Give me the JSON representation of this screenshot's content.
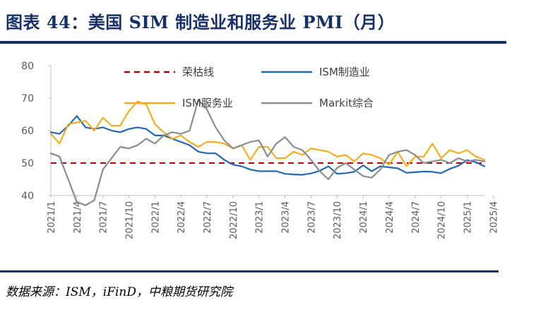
{
  "header": {
    "title": "图表 44：美国 SIM 制造业和服务业 PMI（月）"
  },
  "footer": {
    "source": "数据来源：ISM，iFinD，中粮期货研究院"
  },
  "colors": {
    "brand": "#16306a",
    "manufacturing": "#2368b4",
    "services": "#f5ad1e",
    "markit": "#8c8c8c",
    "boom_line": "#c00000"
  },
  "chart_data": {
    "type": "line",
    "title": "",
    "xlabel": "",
    "ylabel": "",
    "ylim": [
      40,
      80
    ],
    "yticks": [
      40,
      50,
      60,
      70,
      80
    ],
    "x_start": "2021/1",
    "x_end": "2025/4",
    "xticks": [
      "2021/1",
      "2021/4",
      "2021/7",
      "2021/10",
      "2022/1",
      "2022/4",
      "2022/7",
      "2022/10",
      "2023/1",
      "2023/4",
      "2023/7",
      "2023/10",
      "2024/1",
      "2024/4",
      "2024/7",
      "2024/10",
      "2025/1",
      "2025/4"
    ],
    "legend": [
      "荣枯线",
      "ISM制造业",
      "ISM服务业",
      "Markit综合"
    ],
    "series": [
      {
        "name": "荣枯线",
        "color": "#c00000",
        "dashed": true,
        "values": [
          50,
          50,
          50,
          50,
          50,
          50,
          50,
          50,
          50,
          50,
          50,
          50,
          50,
          50,
          50,
          50,
          50,
          50,
          50,
          50,
          50,
          50,
          50,
          50,
          50,
          50,
          50,
          50,
          50,
          50,
          50,
          50,
          50,
          50,
          50,
          50,
          50,
          50,
          50,
          50,
          50,
          50,
          50,
          50,
          50,
          50,
          50,
          50,
          50,
          50,
          50
        ]
      },
      {
        "name": "ISM制造业",
        "color": "#2368b4",
        "values": [
          59.5,
          59.0,
          61.5,
          64.5,
          61.0,
          60.5,
          61.0,
          60.0,
          59.5,
          60.5,
          61.0,
          60.5,
          58.5,
          58.5,
          57.5,
          56.5,
          55.5,
          53.5,
          53.0,
          53.0,
          51.0,
          49.5,
          49.0,
          48.0,
          47.5,
          47.5,
          47.5,
          46.7,
          46.5,
          46.4,
          46.8,
          47.6,
          49.0,
          46.7,
          46.9,
          47.3,
          49.3,
          47.5,
          49.0,
          48.7,
          48.4,
          47.0,
          47.2,
          47.4,
          47.3,
          46.9,
          48.2,
          49.2,
          50.9,
          50.3,
          49.0
        ]
      },
      {
        "name": "ISM服务业",
        "color": "#f5ad1e",
        "values": [
          59.0,
          56.0,
          62.0,
          62.5,
          63.0,
          60.0,
          64.0,
          61.5,
          61.5,
          66.0,
          69.0,
          68.0,
          62.0,
          59.5,
          57.5,
          58.5,
          56.5,
          55.0,
          56.5,
          56.5,
          56.0,
          54.5,
          55.5,
          51.0,
          55.0,
          55.0,
          51.5,
          51.5,
          53.5,
          52.5,
          54.5,
          54.0,
          53.5,
          52.0,
          52.5,
          50.5,
          53.0,
          52.5,
          51.5,
          49.5,
          53.5,
          49.0,
          52.0,
          52.0,
          56.0,
          51.5,
          54.0,
          53.0,
          54.0,
          52.0,
          51.0
        ]
      },
      {
        "name": "Markit综合",
        "color": "#8c8c8c",
        "values": [
          53.0,
          52.0,
          45.0,
          38.0,
          37.0,
          38.5,
          48.0,
          51.5,
          55.0,
          54.5,
          55.5,
          57.5,
          56.0,
          58.5,
          59.5,
          59.0,
          60.0,
          69.5,
          66.5,
          61.0,
          57.0,
          54.5,
          55.5,
          56.5,
          57.0,
          52.0,
          56.0,
          58.0,
          55.0,
          54.0,
          51.0,
          47.5,
          45.0,
          48.5,
          50.0,
          48.0,
          46.0,
          45.5,
          48.0,
          52.5,
          53.5,
          54.0,
          52.5,
          50.0,
          50.5,
          51.0,
          50.0,
          51.5,
          50.5,
          51.0,
          50.5
        ]
      }
    ]
  }
}
